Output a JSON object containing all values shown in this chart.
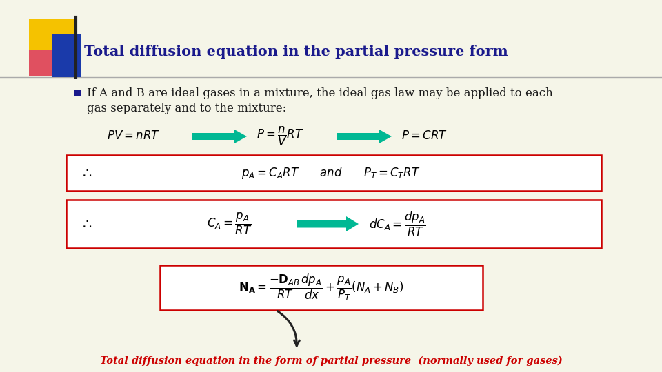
{
  "background_color": "#f5f5e8",
  "title": "Total diffusion equation in the partial pressure form",
  "title_color": "#1a1a8c",
  "title_fontsize": 15,
  "bullet_color": "#1a1a1a",
  "bullet_fontsize": 12,
  "footer_text": "Total diffusion equation in the form of partial pressure  (normally used for gases)",
  "footer_color": "#cc0000",
  "arrow_color": "#00b894",
  "box_border_color": "#cc0000",
  "gold_color": "#f5c200",
  "pink_color": "#e05060",
  "blue_color": "#1a3aaa"
}
